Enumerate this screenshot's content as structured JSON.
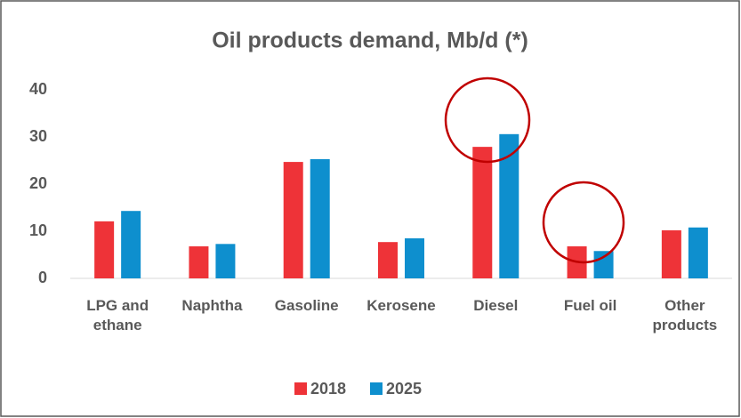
{
  "chart_data": {
    "type": "bar",
    "title": "Oil products demand, Mb/d (*)",
    "categories": [
      "LPG and ethane",
      "Naphtha",
      "Gasoline",
      "Kerosene",
      "Diesel",
      "Fuel oil",
      "Other products"
    ],
    "series": [
      {
        "name": "2018",
        "color": "#ee3338",
        "values": [
          12.1,
          6.8,
          24.7,
          7.7,
          27.9,
          6.8,
          10.2
        ]
      },
      {
        "name": "2025",
        "color": "#0e8fce",
        "values": [
          14.3,
          7.3,
          25.3,
          8.5,
          30.6,
          5.8,
          10.8
        ]
      }
    ],
    "ylim": [
      0,
      40
    ],
    "yticks": [
      0,
      10,
      20,
      30,
      40
    ],
    "grid": false,
    "legend": "bottom"
  }
}
